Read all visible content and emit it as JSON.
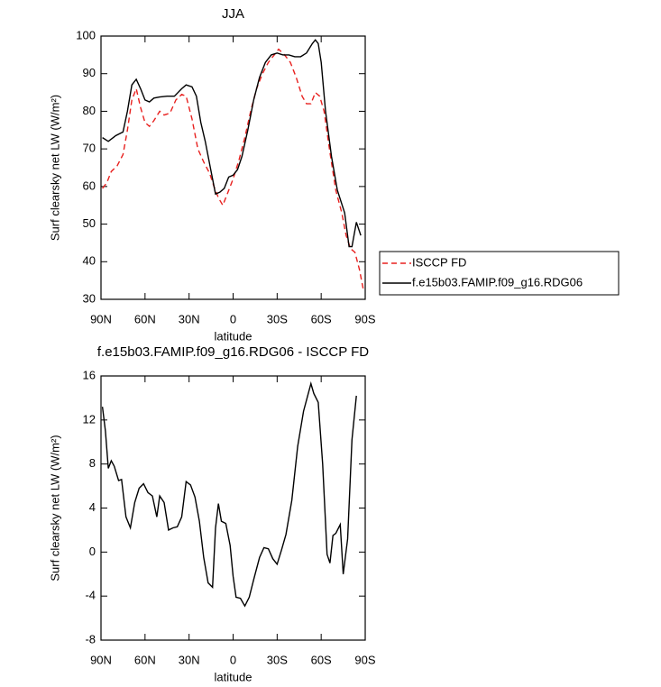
{
  "chart_data": [
    {
      "type": "line",
      "title": "JJA",
      "xlabel": "latitude",
      "ylabel": "Surf clearsky net LW (W/m²)",
      "xlim": [
        90,
        -90
      ],
      "ylim": [
        30,
        100
      ],
      "xticks": [
        {
          "value": 90,
          "label": "90N"
        },
        {
          "value": 60,
          "label": "60N"
        },
        {
          "value": 30,
          "label": "30N"
        },
        0,
        {
          "value": -30,
          "label": "30S"
        },
        {
          "value": -60,
          "label": "60S"
        },
        {
          "value": -90,
          "label": "90S"
        }
      ],
      "yticks": [
        30,
        40,
        50,
        60,
        70,
        80,
        90,
        100
      ],
      "legend": "right",
      "series": [
        {
          "name": "ISCCP FD",
          "color": "#e8201e",
          "dash": true,
          "x": [
            89,
            86,
            83,
            79,
            75,
            72,
            69,
            66,
            63,
            60,
            57,
            54,
            50,
            47,
            43,
            39,
            35,
            32,
            28,
            24,
            20,
            16,
            13,
            10,
            7,
            4,
            0,
            -4,
            -8,
            -12,
            -16,
            -20,
            -24,
            -28,
            -31,
            -35,
            -39,
            -43,
            -47,
            -50,
            -53,
            -56,
            -59,
            -62,
            -66,
            -70,
            -74,
            -77,
            -80,
            -83,
            -86,
            -89
          ],
          "values": [
            59.5,
            61,
            64,
            65.5,
            68.5,
            75,
            83,
            86,
            81,
            77,
            76,
            77.5,
            80,
            79,
            79.5,
            83,
            84.5,
            84,
            78,
            70,
            66.5,
            63.5,
            60,
            57,
            55,
            58,
            62,
            67,
            73,
            80,
            86,
            90,
            93,
            95,
            96.5,
            95,
            93,
            89,
            84,
            82,
            82,
            85,
            84,
            80,
            69,
            59,
            53,
            47,
            43.5,
            42.5,
            38,
            32
          ]
        },
        {
          "name": "f.e15b03.FAMIP.f09_g16.RDG06",
          "color": "#000000",
          "dash": false,
          "x": [
            89,
            85,
            80,
            75,
            72,
            69,
            66,
            63,
            60,
            57,
            54,
            50,
            45,
            40,
            35,
            32,
            28,
            25,
            22,
            19,
            15,
            12,
            9,
            6,
            3,
            0,
            -3,
            -6,
            -10,
            -14,
            -18,
            -22,
            -26,
            -30,
            -34,
            -38,
            -42,
            -46,
            -50,
            -54,
            -56,
            -58,
            -60,
            -63,
            -67,
            -71,
            -76,
            -79,
            -81,
            -84,
            -87
          ],
          "values": [
            73,
            72,
            73.5,
            74.5,
            80,
            87,
            88.5,
            86,
            83,
            82.5,
            83.5,
            83.8,
            84,
            84,
            86,
            87,
            86.5,
            84,
            77,
            72,
            64,
            58,
            58.5,
            59.5,
            62.5,
            63,
            64.5,
            68,
            75,
            83,
            89,
            93,
            95,
            95.5,
            95,
            95,
            94.5,
            94.5,
            95.5,
            98,
            99,
            98,
            93,
            80,
            68,
            59,
            53,
            44,
            44,
            50.5,
            47
          ]
        }
      ]
    },
    {
      "type": "line",
      "title": "f.e15b03.FAMIP.f09_g16.RDG06 - ISCCP FD",
      "xlabel": "latitude",
      "ylabel": "Surf clearsky net LW (W/m²)",
      "xlim": [
        90,
        -90
      ],
      "ylim": [
        -8,
        16
      ],
      "xticks": [
        {
          "value": 90,
          "label": "90N"
        },
        {
          "value": 60,
          "label": "60N"
        },
        {
          "value": 30,
          "label": "30N"
        },
        0,
        {
          "value": -30,
          "label": "30S"
        },
        {
          "value": -60,
          "label": "60S"
        },
        {
          "value": -90,
          "label": "90S"
        }
      ],
      "yticks": [
        -8,
        -4,
        0,
        4,
        8,
        12,
        16
      ],
      "color": "#000000",
      "x": [
        89,
        87,
        85,
        83,
        81,
        78,
        76,
        73,
        70,
        67,
        64,
        61,
        58,
        55,
        52,
        50,
        47,
        44,
        41,
        38,
        35,
        32,
        29,
        26,
        23,
        20,
        17,
        14,
        12,
        10,
        8,
        5,
        2,
        0,
        -2,
        -5,
        -8,
        -11,
        -14,
        -18,
        -21,
        -24,
        -27,
        -30,
        -33,
        -36,
        -40,
        -44,
        -48,
        -51,
        -53,
        -55,
        -58,
        -61,
        -64,
        -66,
        -68,
        -70,
        -73,
        -75,
        -78,
        -81,
        -84
      ],
      "values": [
        13.2,
        11,
        7.6,
        8.3,
        7.8,
        6.5,
        6.6,
        3.2,
        2.2,
        4.5,
        5.8,
        6.2,
        5.4,
        5.1,
        3.2,
        5.1,
        4.5,
        2.0,
        2.2,
        2.3,
        3.2,
        6.4,
        6.1,
        5.0,
        2.8,
        -0.5,
        -2.8,
        -3.2,
        2.2,
        4.4,
        2.8,
        2.6,
        0.6,
        -2.2,
        -4.1,
        -4.2,
        -4.9,
        -4.1,
        -2.5,
        -0.5,
        0.4,
        0.3,
        -0.6,
        -1.1,
        0.2,
        1.6,
        4.7,
        9.6,
        12.8,
        14.3,
        15.3,
        14.4,
        13.6,
        8.0,
        -0.2,
        -1.0,
        1.5,
        1.7,
        2.5,
        -2.0,
        1.2,
        10.2,
        14.2
      ]
    }
  ]
}
